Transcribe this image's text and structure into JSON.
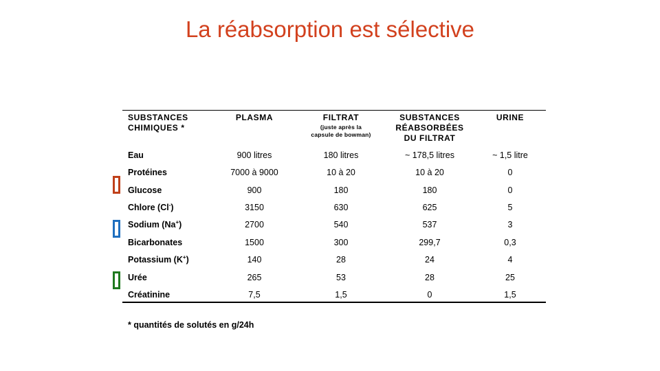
{
  "title": "La réabsorption est sélective",
  "table": {
    "headers": [
      {
        "lines": [
          "SUBSTANCES",
          "CHIMIQUES *"
        ],
        "sub": ""
      },
      {
        "lines": [
          "PLASMA"
        ],
        "sub": ""
      },
      {
        "lines": [
          "FILTRAT"
        ],
        "sub": [
          "(juste après la",
          "capsule de bowman)"
        ]
      },
      {
        "lines": [
          "SUBSTANCES",
          "RÉABSORBÉES",
          "DU FILTRAT"
        ],
        "sub": ""
      },
      {
        "lines": [
          "URINE"
        ],
        "sub": ""
      }
    ],
    "rows": [
      {
        "name": "Eau",
        "sup": "",
        "name_end": "",
        "plasma": "900 litres",
        "filtrat": "180 litres",
        "reabsorbees": "~ 178,5 litres",
        "urine": "~ 1,5 litre"
      },
      {
        "name": "Protéines",
        "sup": "",
        "name_end": "",
        "plasma": "7000 à 9000",
        "filtrat": "10 à 20",
        "reabsorbees": "10 à 20",
        "urine": "0"
      },
      {
        "name": "Glucose",
        "sup": "",
        "name_end": "",
        "plasma": "900",
        "filtrat": "180",
        "reabsorbees": "180",
        "urine": "0"
      },
      {
        "name": "Chlore (Cl",
        "sup": "-",
        "name_end": ")",
        "plasma": "3150",
        "filtrat": "630",
        "reabsorbees": "625",
        "urine": "5"
      },
      {
        "name": "Sodium (Na",
        "sup": "+",
        "name_end": ")",
        "plasma": "2700",
        "filtrat": "540",
        "reabsorbees": "537",
        "urine": "3"
      },
      {
        "name": "Bicarbonates",
        "sup": "",
        "name_end": "",
        "plasma": "1500",
        "filtrat": "300",
        "reabsorbees": "299,7",
        "urine": "0,3"
      },
      {
        "name": "Potassium (K",
        "sup": "+",
        "name_end": ")",
        "plasma": "140",
        "filtrat": "28",
        "reabsorbees": "24",
        "urine": "4"
      },
      {
        "name": "Urée",
        "sup": "",
        "name_end": "",
        "plasma": "265",
        "filtrat": "53",
        "reabsorbees": "28",
        "urine": "25"
      },
      {
        "name": "Créatinine",
        "sup": "",
        "name_end": "",
        "plasma": "7,5",
        "filtrat": "1,5",
        "reabsorbees": "0",
        "urine": "1,5"
      }
    ]
  },
  "markers": [
    {
      "row": "Glucose",
      "color": "#c0401a"
    },
    {
      "row": "Sodium",
      "color": "#1f6fbf"
    },
    {
      "row": "Urée",
      "color": "#1f7a1f"
    }
  ],
  "footnote": "* quantités de solutés en g/24h"
}
